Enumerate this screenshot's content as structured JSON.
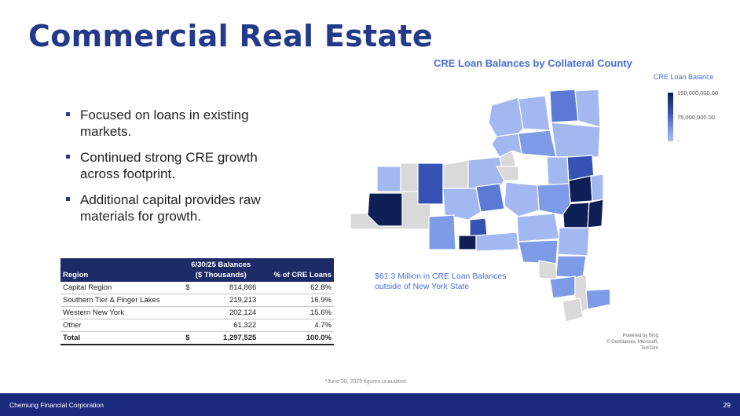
{
  "page": {
    "title": "Commercial Real Estate",
    "bullets": [
      "Focused on loans in existing markets.",
      "Continued strong CRE growth across footprint.",
      "Additional capital provides raw materials for growth."
    ]
  },
  "table": {
    "headers": {
      "region": "Region",
      "balances_line1": "6/30/25 Balances",
      "balances_line2": "($ Thousands)",
      "pct": "% of CRE Loans"
    },
    "rows": [
      {
        "region": "Capital Region",
        "dollar": "$",
        "balance": "814,866",
        "pct": "62.8%"
      },
      {
        "region": "Southern Tier & Finger Lakes",
        "dollar": "",
        "balance": "219,213",
        "pct": "16.9%"
      },
      {
        "region": "Western New York",
        "dollar": "",
        "balance": "202,124",
        "pct": "15.6%"
      },
      {
        "region": "Other",
        "dollar": "",
        "balance": "61,322",
        "pct": "4.7%"
      }
    ],
    "total": {
      "region": "Total",
      "dollar": "$",
      "balance": "1,297,525",
      "pct": "100.0%"
    }
  },
  "map": {
    "title": "CRE Loan Balances by Collateral County",
    "legend_title": "CRE Loan Balance",
    "legend_max": "150,000,000.00",
    "legend_mid": "75,000,000.00",
    "legend_min": "-",
    "outside_note": "$61.3 Million in CRE Loan Balances outside of New York State",
    "powered_line1": "Powered by Bing",
    "powered_line2": "© GeoNames, Microsoft, TomTom",
    "colors": {
      "darkest": "#0f1f55",
      "dark": "#3552b4",
      "mid": "#5a7ad6",
      "light": "#7e9be8",
      "lighter": "#a3b8f0",
      "none": "#d9d9d9"
    }
  },
  "footnote": "*June 30, 2025 figures unaudited",
  "footer": {
    "company": "Chemung Financial Corporation",
    "page_number": "29"
  }
}
